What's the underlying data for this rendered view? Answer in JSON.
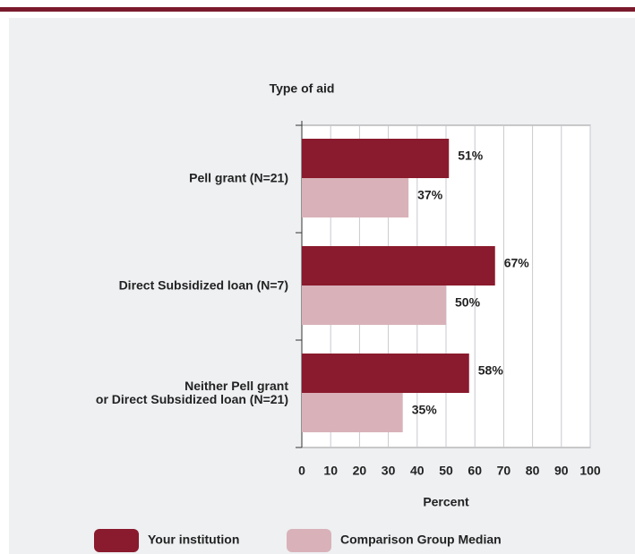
{
  "chart_data": {
    "type": "bar",
    "orientation": "horizontal",
    "y_axis_title": "Type of aid",
    "x_axis_title": "Percent",
    "categories": [
      "Pell grant  (N=21)",
      "Direct Subsidized loan (N=7)",
      "Neither Pell grant\nor Direct Subsidized loan (N=21)"
    ],
    "series": [
      {
        "name": "Your institution",
        "color": "#8a1a2d",
        "values": [
          51,
          67,
          58
        ],
        "value_labels": [
          "51%",
          "67%",
          "58%"
        ]
      },
      {
        "name": "Comparison Group Median",
        "color": "#d9b2b9",
        "values": [
          37,
          50,
          35
        ],
        "value_labels": [
          "37%",
          "50%",
          "35%"
        ]
      }
    ],
    "xlim": [
      0,
      100
    ],
    "xticks": [
      0,
      10,
      20,
      30,
      40,
      50,
      60,
      70,
      80,
      90,
      100
    ],
    "grid": true,
    "legend": "bottom"
  }
}
